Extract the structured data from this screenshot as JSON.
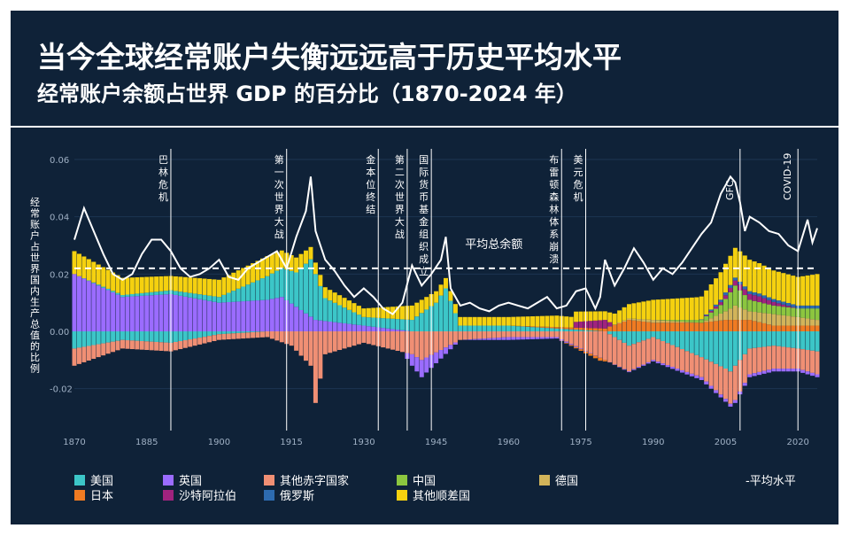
{
  "header": {
    "title": "当今全球经常账户失衡远远高于历史平均水平",
    "subtitle": "经常账户余额占世界 GDP 的百分比（1870-2024 年）"
  },
  "colors": {
    "background": "#0f2238",
    "us": "#3cc6c8",
    "uk": "#9b6cff",
    "other_deficit": "#f08f74",
    "china": "#8cc63f",
    "germany": "#d2b45a",
    "japan": "#f07b22",
    "saudi": "#a0237e",
    "russia": "#2d6bb0",
    "other_surplus": "#f5d10f",
    "line": "#ffffff"
  },
  "chart_data": {
    "type": "bar",
    "title": "当今全球经常账户失衡远远高于历史平均水平",
    "subtitle": "经常账户余额占世界 GDP 的百分比（1870-2024 年）",
    "ylabel": "经常账户占世界国内生产总值的比例",
    "xlabel": "",
    "xlim": [
      1870,
      2024
    ],
    "ylim": [
      -0.03,
      0.06
    ],
    "yticks": [
      "0.06",
      "0.04",
      "0.02",
      "0.00",
      "-0.02"
    ],
    "xticks": [
      "1870",
      "1885",
      "1900",
      "1915",
      "1930",
      "1945",
      "1960",
      "1975",
      "1990",
      "2005",
      "2020"
    ],
    "average_level": 0.022,
    "line_label": "平均总余额",
    "legend_position": "bottom",
    "legend": [
      {
        "label": "美国",
        "key": "us"
      },
      {
        "label": "英国",
        "key": "uk"
      },
      {
        "label": "其他赤字国家",
        "key": "other_deficit"
      },
      {
        "label": "中国",
        "key": "china"
      },
      {
        "label": "德国",
        "key": "germany"
      },
      {
        "label": "日本",
        "key": "japan"
      },
      {
        "label": "沙特阿拉伯",
        "key": "saudi"
      },
      {
        "label": "俄罗斯",
        "key": "russia"
      },
      {
        "label": "其他顺差国",
        "key": "other_surplus"
      }
    ],
    "average_legend": "-平均水平",
    "events": [
      {
        "year": 1890,
        "label": "巴林危机"
      },
      {
        "year": 1914,
        "label": "第一次世界大战"
      },
      {
        "year": 1933,
        "label": "金本位终结"
      },
      {
        "year": 1939,
        "label": "第二次世界大战"
      },
      {
        "year": 1944,
        "label": "国际货币基金组织成立"
      },
      {
        "year": 1971,
        "label": "布雷顿森林体系崩溃"
      },
      {
        "year": 1976,
        "label": "美元危机"
      },
      {
        "year": 2008,
        "label": "GFC"
      },
      {
        "year": 2020,
        "label": "COVID-19"
      }
    ],
    "total_balance": {
      "years": [
        1870,
        1872,
        1874,
        1876,
        1878,
        1880,
        1882,
        1884,
        1886,
        1888,
        1890,
        1892,
        1894,
        1896,
        1898,
        1900,
        1902,
        1904,
        1906,
        1908,
        1910,
        1912,
        1914,
        1916,
        1918,
        1919,
        1920,
        1922,
        1924,
        1926,
        1928,
        1930,
        1932,
        1934,
        1936,
        1938,
        1940,
        1942,
        1944,
        1946,
        1947,
        1948,
        1950,
        1952,
        1954,
        1956,
        1958,
        1960,
        1962,
        1964,
        1966,
        1968,
        1970,
        1972,
        1974,
        1976,
        1978,
        1979,
        1980,
        1982,
        1984,
        1986,
        1988,
        1990,
        1992,
        1994,
        1996,
        1998,
        2000,
        2002,
        2004,
        2006,
        2007,
        2008,
        2009,
        2010,
        2012,
        2014,
        2016,
        2018,
        2020,
        2022,
        2023,
        2024
      ],
      "values": [
        0.032,
        0.043,
        0.035,
        0.027,
        0.02,
        0.018,
        0.02,
        0.027,
        0.032,
        0.032,
        0.028,
        0.022,
        0.019,
        0.02,
        0.022,
        0.025,
        0.019,
        0.018,
        0.022,
        0.024,
        0.026,
        0.028,
        0.022,
        0.033,
        0.042,
        0.054,
        0.035,
        0.025,
        0.021,
        0.016,
        0.012,
        0.015,
        0.012,
        0.008,
        0.006,
        0.01,
        0.023,
        0.016,
        0.02,
        0.025,
        0.033,
        0.015,
        0.009,
        0.01,
        0.008,
        0.007,
        0.009,
        0.01,
        0.009,
        0.008,
        0.01,
        0.012,
        0.008,
        0.009,
        0.014,
        0.015,
        0.008,
        0.012,
        0.025,
        0.016,
        0.022,
        0.029,
        0.024,
        0.018,
        0.022,
        0.02,
        0.024,
        0.029,
        0.034,
        0.038,
        0.048,
        0.054,
        0.052,
        0.045,
        0.035,
        0.04,
        0.038,
        0.035,
        0.034,
        0.03,
        0.028,
        0.039,
        0.031,
        0.036
      ]
    },
    "surplus_series": [
      {
        "name": "英国",
        "key": "uk",
        "years": [
          1870,
          1880,
          1890,
          1900,
          1910,
          1913,
          1920,
          1930,
          1940,
          1950,
          1960
        ],
        "values": [
          0.02,
          0.012,
          0.013,
          0.01,
          0.011,
          0.012,
          0.004,
          0.002,
          0.0,
          0.0,
          0.0
        ]
      },
      {
        "name": "美国",
        "key": "us",
        "years": [
          1870,
          1900,
          1916,
          1919,
          1922,
          1930,
          1940,
          1945,
          1947,
          1950,
          1960,
          1970,
          1980
        ],
        "values": [
          0.0,
          0.002,
          0.012,
          0.02,
          0.008,
          0.003,
          0.004,
          0.01,
          0.015,
          0.002,
          0.002,
          0.001,
          0.0
        ]
      },
      {
        "name": "日本",
        "key": "japan",
        "years": [
          1870,
          1960,
          1980,
          1985,
          1990,
          1995,
          2000,
          2005,
          2010,
          2015,
          2020,
          2024
        ],
        "values": [
          0.0,
          0.0,
          0.001,
          0.004,
          0.003,
          0.003,
          0.003,
          0.004,
          0.004,
          0.002,
          0.002,
          0.002
        ]
      },
      {
        "name": "德国",
        "key": "germany",
        "years": [
          1870,
          1980,
          1990,
          2000,
          2005,
          2007,
          2010,
          2015,
          2020,
          2024
        ],
        "values": [
          0.0,
          0.0,
          0.001,
          0.0,
          0.003,
          0.005,
          0.003,
          0.004,
          0.003,
          0.002
        ]
      },
      {
        "name": "中国",
        "key": "china",
        "years": [
          1870,
          1990,
          2000,
          2004,
          2007,
          2010,
          2015,
          2020,
          2024
        ],
        "values": [
          0.0,
          0.0,
          0.001,
          0.003,
          0.007,
          0.004,
          0.003,
          0.003,
          0.004
        ]
      },
      {
        "name": "沙特阿拉伯",
        "key": "saudi",
        "years": [
          1870,
          1973,
          1974,
          1980,
          1982,
          2000,
          2008,
          2012,
          2020,
          2024
        ],
        "values": [
          0.0,
          0.0,
          0.002,
          0.003,
          0.0,
          0.0,
          0.002,
          0.002,
          0.0,
          0.0
        ]
      },
      {
        "name": "俄罗斯",
        "key": "russia",
        "years": [
          1870,
          1999,
          2005,
          2010,
          2020,
          2024
        ],
        "values": [
          0.0,
          0.0,
          0.001,
          0.001,
          0.001,
          0.001
        ]
      },
      {
        "name": "其他顺差国",
        "key": "other_surplus",
        "years": [
          1870,
          1880,
          1890,
          1900,
          1910,
          1920,
          1930,
          1940,
          1950,
          1960,
          1970,
          1980,
          1990,
          2000,
          2005,
          2010,
          2015,
          2020,
          2024
        ],
        "values": [
          0.008,
          0.006,
          0.005,
          0.006,
          0.007,
          0.004,
          0.003,
          0.005,
          0.003,
          0.003,
          0.004,
          0.003,
          0.007,
          0.008,
          0.01,
          0.011,
          0.01,
          0.01,
          0.011
        ]
      }
    ],
    "deficit_series": [
      {
        "name": "美国",
        "key": "us",
        "years": [
          1870,
          1880,
          1890,
          1900,
          1910,
          1920,
          1930,
          1940,
          1950,
          1960,
          1970,
          1980,
          1985,
          1990,
          2000,
          2005,
          2006,
          2008,
          2010,
          2015,
          2020,
          2024
        ],
        "values": [
          -0.006,
          -0.003,
          -0.004,
          -0.001,
          0.0,
          0.0,
          0.0,
          0.0,
          0.0,
          0.0,
          0.0,
          0.0,
          -0.005,
          -0.002,
          -0.009,
          -0.013,
          -0.014,
          -0.01,
          -0.006,
          -0.005,
          -0.006,
          -0.007
        ]
      },
      {
        "name": "其他赤字国家",
        "key": "other_deficit",
        "years": [
          1870,
          1880,
          1890,
          1900,
          1910,
          1915,
          1919,
          1920,
          1922,
          1930,
          1940,
          1942,
          1950,
          1960,
          1970,
          1980,
          1990,
          2000,
          2007,
          2010,
          2015,
          2020,
          2024
        ],
        "values": [
          -0.006,
          -0.003,
          -0.003,
          -0.002,
          -0.002,
          -0.005,
          -0.012,
          -0.025,
          -0.008,
          -0.004,
          -0.008,
          -0.01,
          -0.003,
          -0.002,
          -0.002,
          -0.01,
          -0.008,
          -0.007,
          -0.012,
          -0.009,
          -0.008,
          -0.007,
          -0.008
        ]
      },
      {
        "name": "英国",
        "key": "uk",
        "years": [
          1870,
          1910,
          1938,
          1940,
          1942,
          1946,
          1950,
          1960,
          1980,
          2000,
          2024
        ],
        "values": [
          0.0,
          0.0,
          0.0,
          -0.004,
          -0.006,
          -0.003,
          0.0,
          -0.001,
          0.0,
          -0.001,
          -0.001
        ]
      },
      {
        "name": "日本",
        "key": "japan",
        "years": [
          1870,
          1970,
          1979,
          1981,
          2024
        ],
        "values": [
          0.0,
          0.0,
          -0.001,
          0.0,
          0.0
        ]
      }
    ]
  }
}
